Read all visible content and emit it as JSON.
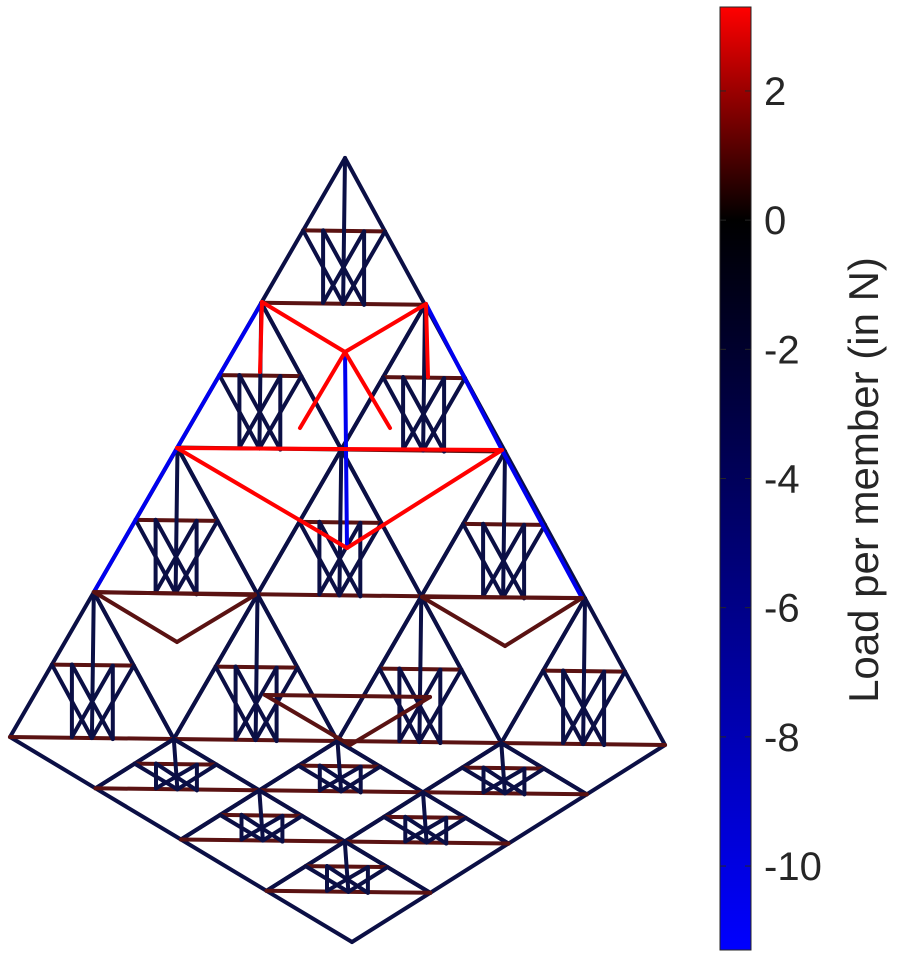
{
  "colorbar": {
    "title": "Load per member (in N)",
    "range": [
      -11.3,
      3.3
    ],
    "ticks": [
      {
        "value": 2,
        "label": "2"
      },
      {
        "value": 0,
        "label": "0"
      },
      {
        "value": -2,
        "label": "-2"
      },
      {
        "value": -4,
        "label": "-4"
      },
      {
        "value": -6,
        "label": "-6"
      },
      {
        "value": -8,
        "label": "-8"
      },
      {
        "value": -10,
        "label": "-10"
      }
    ],
    "colors": {
      "max": "#ff0000",
      "zero": "#000000",
      "min": "#0000ff"
    }
  },
  "truss": {
    "colors": {
      "tension_strong": "#ff0000",
      "tension_mild": "#5a1212",
      "neutral": "#0a0a14",
      "compression_mild": "#0b0f45",
      "compression_strong": "#0000ee"
    }
  }
}
